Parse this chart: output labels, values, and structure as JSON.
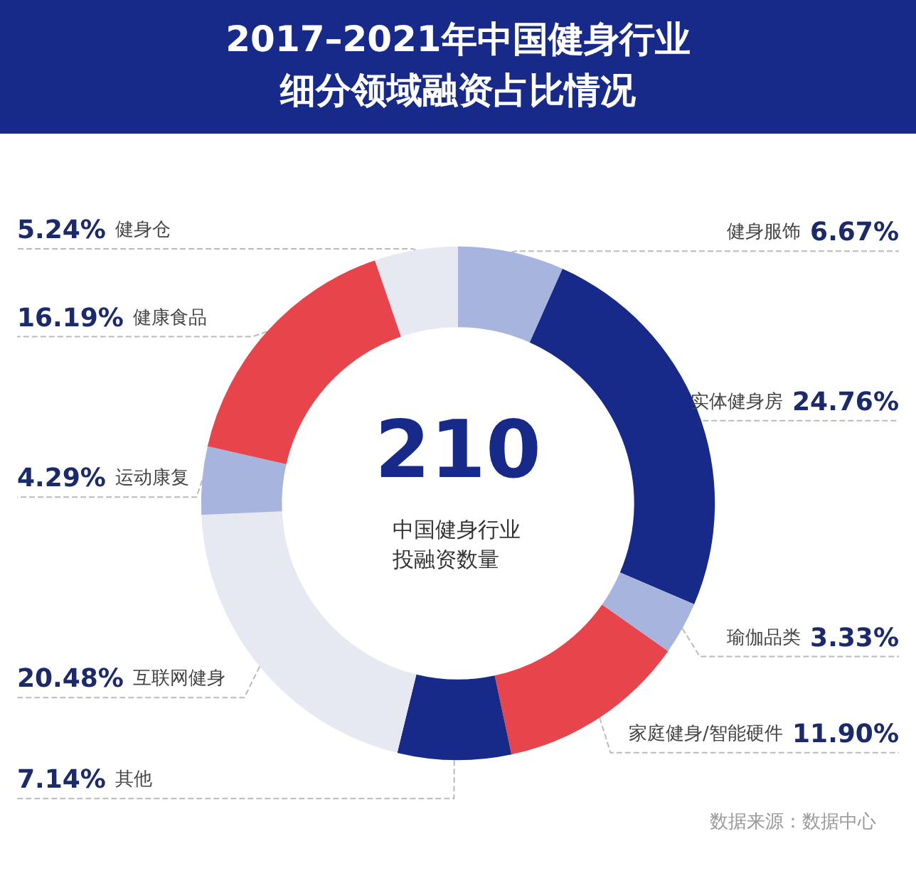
{
  "chart_data": {
    "type": "donut",
    "title": "2017–2021年中国健身行业细分领域融资占比情况",
    "categories": [
      "健身服饰",
      "实体健身房",
      "瑜伽品类",
      "家庭健身/智能硬件",
      "其他",
      "互联网健身",
      "运动康复",
      "健康食品",
      "健身仓"
    ],
    "values": [
      6.67,
      24.76,
      3.33,
      11.9,
      7.14,
      20.48,
      4.29,
      16.19,
      5.24
    ],
    "value_labels": [
      "6.67%",
      "24.76%",
      "3.33%",
      "11.90%",
      "7.14%",
      "20.48%",
      "4.29%",
      "16.19%",
      "5.24%"
    ],
    "colors": [
      "#a6b4de",
      "#172a8a",
      "#a6b4de",
      "#e8444c",
      "#172a8a",
      "#e6e9f2",
      "#a6b4de",
      "#e8444c",
      "#e6e9f2"
    ],
    "annotations": [
      "210",
      "中国健身行业投融资数量",
      "数据来源：数据中心"
    ],
    "legend": false
  }
}
